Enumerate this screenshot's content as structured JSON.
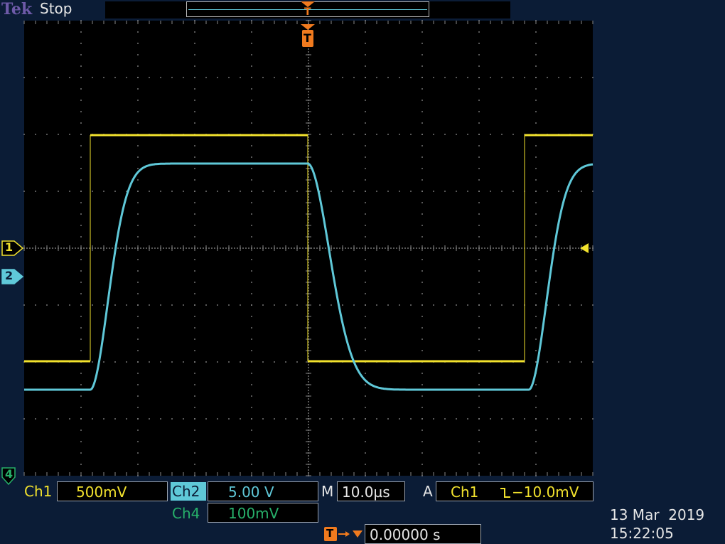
{
  "header": {
    "brand": "Tek",
    "run_state": "Stop"
  },
  "trigger_marker_label": "T",
  "channels": {
    "ch1": {
      "marker": "1",
      "label": "Ch1",
      "scale": "500mV",
      "color": "#f2e22d"
    },
    "ch2": {
      "marker": "2",
      "label": "Ch2",
      "scale": "5.00 V",
      "color": "#5fc8d8"
    },
    "ch4": {
      "marker": "4",
      "label": "Ch4",
      "scale": "100mV",
      "color": "#27b06a"
    }
  },
  "timebase": {
    "label": "M",
    "value": "10.0µs"
  },
  "trigger": {
    "mode": "A",
    "source": "Ch1",
    "slope_icon": "falling-edge-icon",
    "slope_symbol": "⌊",
    "level": "−10.0mV",
    "position_icon": "trigger-position-icon",
    "position_value": "0.00000 s"
  },
  "date": "13 Mar  2019",
  "time": "15:22:05",
  "colors": {
    "background": "#0b1c36",
    "graticule_bg": "#000000",
    "grid": "#8a8a8a",
    "trigger_orange": "#f07a1e",
    "brand_purple": "#6e5aa8"
  }
}
